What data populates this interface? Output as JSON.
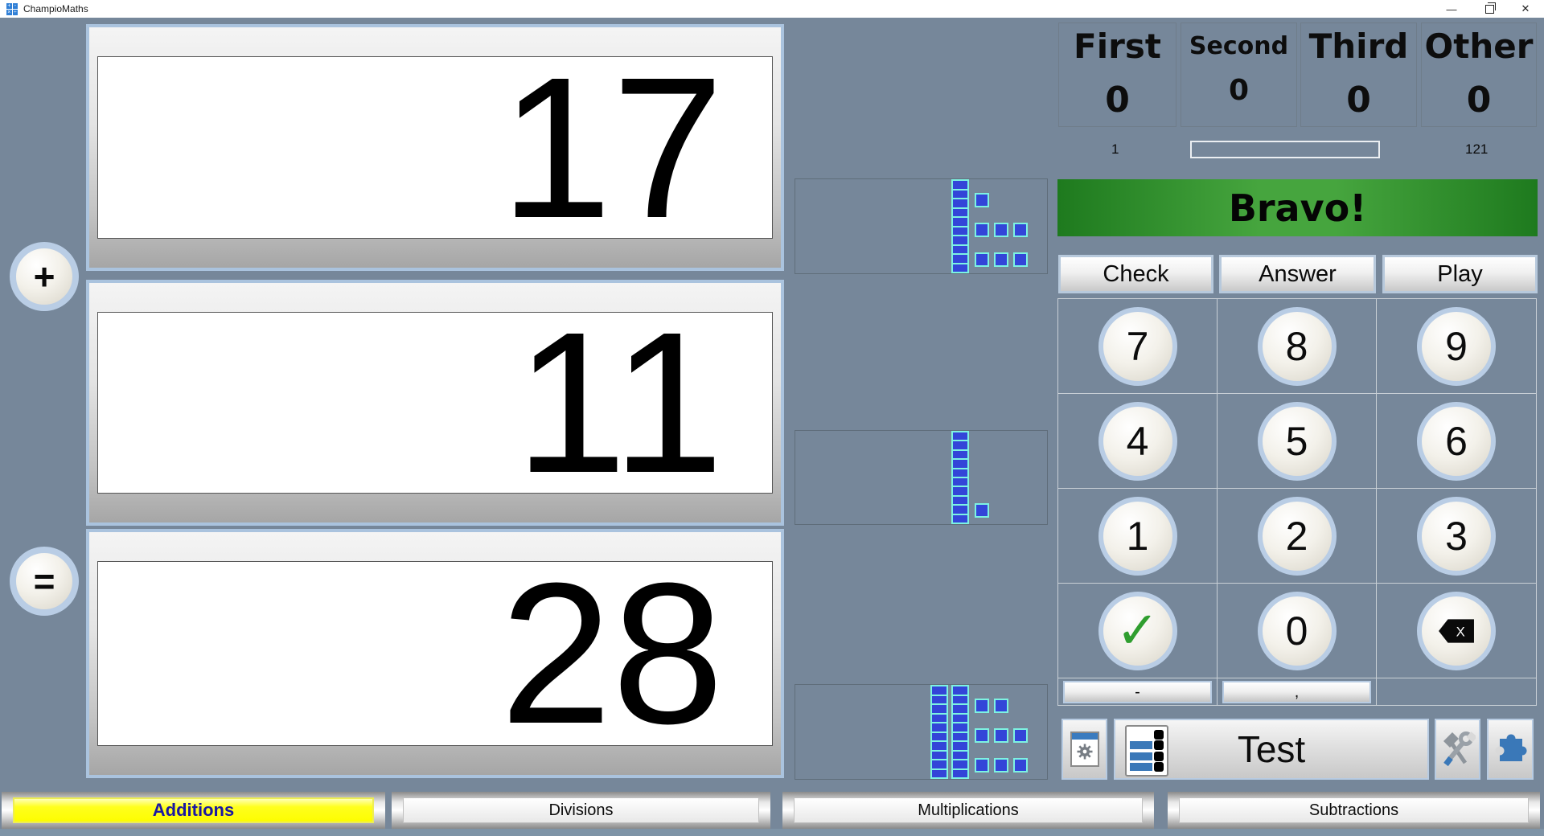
{
  "window": {
    "title": "ChampioMaths",
    "controls": {
      "minimize": "minimize-icon",
      "restore": "restore-icon",
      "close": "close-icon"
    }
  },
  "problem": {
    "operator_add": "+",
    "operator_equals": "=",
    "first_operand": "17",
    "second_operand": "11",
    "answer": "28"
  },
  "block_panels": [
    {
      "tens": 1,
      "units": 7
    },
    {
      "tens": 1,
      "units": 1
    },
    {
      "tens": 2,
      "units": 8
    }
  ],
  "scoreboard": {
    "boxes": [
      {
        "label": "First",
        "value": "0"
      },
      {
        "label": "Second",
        "value": "0"
      },
      {
        "label": "Third",
        "value": "0"
      },
      {
        "label": "Other",
        "value": "0"
      }
    ]
  },
  "progress": {
    "current": "1",
    "total": "121"
  },
  "feedback": {
    "message": "Bravo!",
    "banner_dark": "#1e7a1e",
    "banner_light": "#46a53e"
  },
  "actions": {
    "check": "Check",
    "answer": "Answer",
    "play": "Play"
  },
  "keypad": {
    "digits": [
      "7",
      "8",
      "9",
      "4",
      "5",
      "6",
      "1",
      "2",
      "3"
    ],
    "zero": "0",
    "check_icon": "✓",
    "backspace_letter": "X",
    "minus": "-",
    "comma": ","
  },
  "footer": {
    "test_label": "Test"
  },
  "tabs": [
    {
      "label": "Additions",
      "active": true
    },
    {
      "label": "Divisions",
      "active": false
    },
    {
      "label": "Multiplications",
      "active": false
    },
    {
      "label": "Subtractions",
      "active": false
    }
  ],
  "colors": {
    "background": "#76879a",
    "block_fill": "#3345d8",
    "block_border": "#7df2e2",
    "active_tab": "#ffff00",
    "active_tab_text": "#1a17a3"
  }
}
